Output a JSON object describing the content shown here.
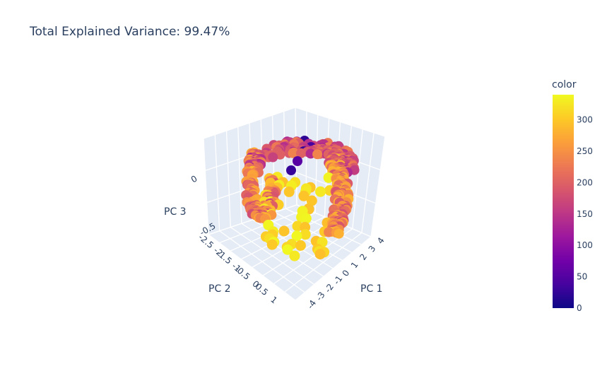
{
  "chart_data": {
    "type": "scatter",
    "title": "Total Explained Variance: 99.47%",
    "subtype": "scatter3d",
    "axes": {
      "x": {
        "label": "PC 1",
        "ticks": [
          "-4",
          "-3",
          "-2",
          "-1",
          "0",
          "1",
          "2",
          "3",
          "4"
        ]
      },
      "y": {
        "label": "PC 2",
        "ticks": [
          "-2.5",
          "-2",
          "-1.5",
          "-1",
          "-0.5",
          "0",
          "0.5",
          "1"
        ]
      },
      "z": {
        "label": "PC 3",
        "ticks": [
          "-0.5",
          "0"
        ]
      }
    },
    "colorbar": {
      "title": "color",
      "range": [
        0,
        340
      ],
      "ticks": [
        "0",
        "50",
        "100",
        "150",
        "200",
        "250",
        "300"
      ],
      "colorscale": "plasma"
    },
    "grid": true,
    "scene_background": "#e5ecf6",
    "colors": {
      "grid": "#ffffff",
      "text": "#2a3f5f",
      "plasma": [
        "#0d0887",
        "#46039f",
        "#7201a8",
        "#9c179e",
        "#bd3786",
        "#d8576b",
        "#ed7953",
        "#fb9f3a",
        "#fdca26",
        "#f0f921"
      ]
    }
  }
}
